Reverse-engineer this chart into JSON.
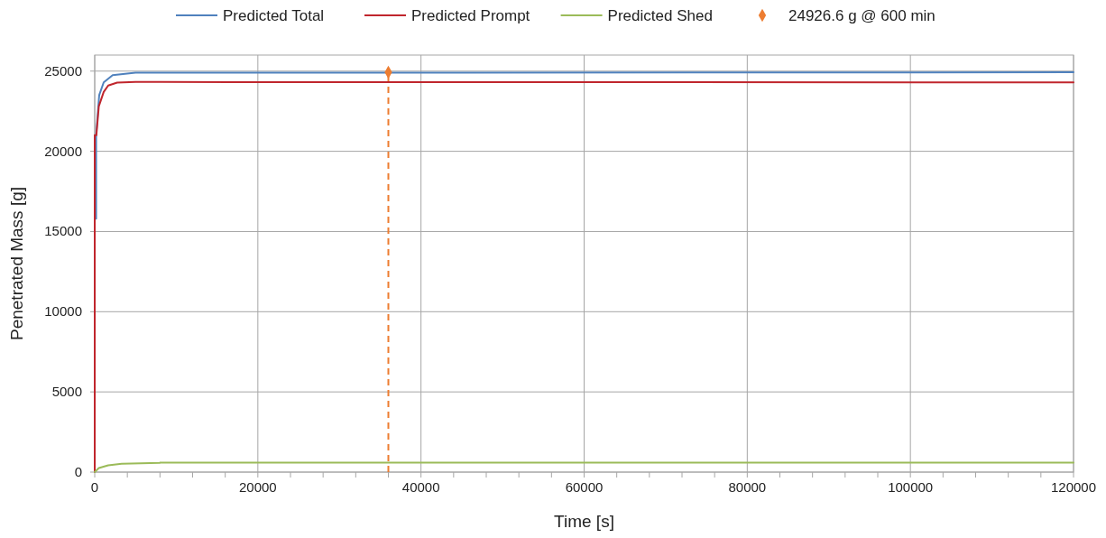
{
  "chart_data": {
    "type": "line",
    "xlabel": "Time [s]",
    "ylabel": "Penetrated Mass [g]",
    "xlim": [
      0,
      120000
    ],
    "ylim": [
      0,
      26000
    ],
    "xticks": [
      0,
      {
        "value": 4000,
        "label": null
      },
      {
        "value": 8000,
        "label": null
      },
      {
        "value": 12000,
        "label": null
      },
      {
        "value": 16000,
        "label": null
      },
      20000,
      {
        "value": 24000,
        "label": null
      },
      {
        "value": 28000,
        "label": null
      },
      {
        "value": 32000,
        "label": null
      },
      {
        "value": 36000,
        "label": null
      },
      40000,
      {
        "value": 44000,
        "label": null
      },
      {
        "value": 48000,
        "label": null
      },
      {
        "value": 52000,
        "label": null
      },
      {
        "value": 56000,
        "label": null
      },
      60000,
      {
        "value": 64000,
        "label": null
      },
      {
        "value": 68000,
        "label": null
      },
      {
        "value": 72000,
        "label": null
      },
      {
        "value": 76000,
        "label": null
      },
      80000,
      {
        "value": 84000,
        "label": null
      },
      {
        "value": 88000,
        "label": null
      },
      {
        "value": 92000,
        "label": null
      },
      {
        "value": 96000,
        "label": null
      },
      100000,
      {
        "value": 104000,
        "label": null
      },
      {
        "value": 108000,
        "label": null
      },
      {
        "value": 112000,
        "label": null
      },
      {
        "value": 116000,
        "label": null
      },
      120000
    ],
    "yticks": [
      0,
      5000,
      10000,
      15000,
      20000,
      25000
    ],
    "grid": true,
    "legend": "top",
    "line_style": "solid",
    "series": [
      {
        "name": "Predicted Total",
        "color": "#4f81bd",
        "x": [
          0,
          0,
          170,
          170,
          550,
          1100,
          2200,
          5000,
          120000
        ],
        "values": [
          0,
          15800,
          15800,
          21000,
          23500,
          24300,
          24750,
          24900,
          24926.6
        ]
      },
      {
        "name": "Predicted Prompt",
        "color": "#c0262d",
        "x": [
          0,
          0,
          200,
          500,
          1100,
          1650,
          2750,
          5000,
          8000,
          120000
        ],
        "values": [
          0,
          21000,
          21000,
          22800,
          23700,
          24100,
          24280,
          24320,
          24320,
          24300
        ]
      },
      {
        "name": "Predicted Shed",
        "color": "#9bbb59",
        "x": [
          0,
          500,
          1650,
          3300,
          8000,
          8000,
          120000
        ],
        "values": [
          0,
          250,
          420,
          520,
          570,
          590,
          590
        ]
      },
      {
        "name": "24926.6 g @ 600 min",
        "type": "scatter",
        "marker": "diamond",
        "color": "#ed7d31",
        "x": [
          36000
        ],
        "values": [
          24926.6
        ]
      }
    ],
    "ref_lines": [
      {
        "axis": "x",
        "value": 36000,
        "color": "#ed7d31",
        "line_style": "dashed"
      }
    ]
  }
}
